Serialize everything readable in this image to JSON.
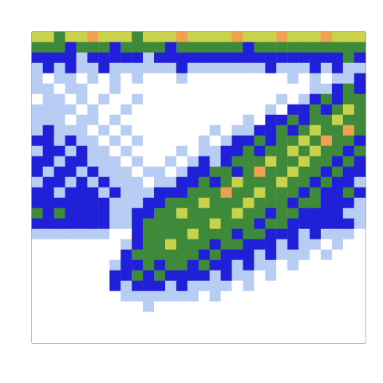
{
  "chart_data": {
    "type": "heatmap",
    "tick_labels": false,
    "zlim": [
      0,
      5
    ],
    "z": [
      [
        4,
        4,
        3,
        4,
        4,
        5,
        4,
        4,
        4,
        3,
        4,
        4,
        4,
        5,
        4,
        4,
        4,
        4,
        5,
        4,
        4,
        4,
        5,
        4,
        4,
        4,
        5,
        4,
        4,
        4
      ],
      [
        3,
        3,
        3,
        2,
        3,
        3,
        3,
        2,
        3,
        3,
        3,
        3,
        2,
        3,
        3,
        3,
        3,
        3,
        3,
        2,
        3,
        3,
        3,
        3,
        3,
        3,
        3,
        3,
        3,
        3
      ],
      [
        2,
        2,
        2,
        2,
        1,
        2,
        2,
        2,
        2,
        2,
        1,
        2,
        2,
        2,
        2,
        2,
        2,
        2,
        2,
        2,
        2,
        2,
        2,
        2,
        2,
        2,
        2,
        2,
        3,
        2
      ],
      [
        1,
        2,
        1,
        2,
        1,
        1,
        2,
        1,
        1,
        1,
        1,
        1,
        1,
        2,
        1,
        1,
        1,
        1,
        1,
        1,
        1,
        2,
        1,
        1,
        1,
        2,
        1,
        2,
        1,
        1
      ],
      [
        1,
        0,
        1,
        1,
        0,
        1,
        0,
        1,
        0,
        1,
        0,
        0,
        0,
        1,
        0,
        0,
        0,
        0,
        0,
        0,
        0,
        0,
        0,
        1,
        0,
        1,
        0,
        1,
        1,
        2
      ],
      [
        1,
        1,
        0,
        1,
        1,
        0,
        0,
        1,
        0,
        0,
        0,
        0,
        0,
        0,
        0,
        0,
        0,
        0,
        0,
        0,
        0,
        0,
        0,
        0,
        0,
        1,
        1,
        2,
        3,
        2
      ],
      [
        0,
        1,
        1,
        0,
        1,
        0,
        1,
        0,
        0,
        1,
        0,
        0,
        0,
        0,
        0,
        0,
        0,
        0,
        0,
        0,
        0,
        0,
        1,
        0,
        1,
        2,
        3,
        2,
        3,
        3
      ],
      [
        1,
        1,
        1,
        1,
        0,
        1,
        0,
        0,
        1,
        0,
        0,
        0,
        0,
        0,
        0,
        0,
        0,
        0,
        0,
        0,
        0,
        1,
        0,
        2,
        2,
        3,
        2,
        3,
        4,
        3
      ],
      [
        1,
        1,
        1,
        0,
        1,
        1,
        0,
        1,
        0,
        0,
        0,
        0,
        0,
        0,
        0,
        0,
        0,
        0,
        0,
        1,
        0,
        2,
        2,
        3,
        2,
        3,
        3,
        4,
        3,
        3
      ],
      [
        1,
        2,
        1,
        1,
        1,
        0,
        1,
        0,
        1,
        0,
        0,
        0,
        0,
        0,
        0,
        0,
        1,
        0,
        1,
        1,
        2,
        2,
        3,
        2,
        3,
        4,
        3,
        3,
        5,
        3
      ],
      [
        2,
        2,
        1,
        2,
        1,
        1,
        0,
        1,
        0,
        1,
        0,
        0,
        0,
        0,
        0,
        1,
        0,
        1,
        2,
        2,
        3,
        2,
        3,
        3,
        4,
        3,
        5,
        3,
        3,
        2
      ],
      [
        1,
        2,
        2,
        1,
        2,
        1,
        1,
        0,
        1,
        0,
        0,
        0,
        0,
        1,
        0,
        1,
        1,
        2,
        2,
        3,
        2,
        3,
        3,
        4,
        3,
        4,
        3,
        3,
        2,
        3
      ],
      [
        2,
        2,
        1,
        2,
        2,
        1,
        1,
        1,
        0,
        1,
        0,
        0,
        1,
        0,
        1,
        2,
        1,
        2,
        3,
        3,
        3,
        4,
        3,
        3,
        4,
        3,
        3,
        2,
        3,
        2
      ],
      [
        2,
        1,
        2,
        2,
        1,
        2,
        1,
        1,
        1,
        0,
        1,
        1,
        0,
        1,
        2,
        2,
        3,
        3,
        2,
        3,
        5,
        3,
        3,
        4,
        3,
        3,
        2,
        3,
        2,
        2
      ],
      [
        1,
        2,
        2,
        1,
        2,
        1,
        2,
        1,
        1,
        1,
        0,
        1,
        1,
        2,
        2,
        3,
        2,
        3,
        4,
        3,
        3,
        3,
        4,
        3,
        3,
        2,
        3,
        2,
        2,
        1
      ],
      [
        2,
        2,
        1,
        2,
        2,
        2,
        1,
        2,
        1,
        1,
        1,
        2,
        2,
        2,
        3,
        3,
        3,
        5,
        3,
        3,
        4,
        3,
        3,
        3,
        2,
        3,
        2,
        2,
        3,
        2
      ],
      [
        2,
        2,
        2,
        2,
        2,
        2,
        2,
        1,
        1,
        1,
        2,
        2,
        3,
        3,
        3,
        4,
        3,
        3,
        3,
        4,
        3,
        3,
        3,
        2,
        3,
        3,
        2,
        2,
        2,
        1
      ],
      [
        3,
        2,
        3,
        2,
        2,
        2,
        2,
        1,
        1,
        2,
        2,
        3,
        3,
        4,
        3,
        3,
        3,
        3,
        4,
        3,
        3,
        2,
        3,
        3,
        2,
        2,
        2,
        2,
        1,
        1
      ],
      [
        2,
        2,
        2,
        2,
        2,
        2,
        2,
        1,
        1,
        2,
        3,
        3,
        3,
        3,
        3,
        3,
        4,
        3,
        3,
        3,
        2,
        3,
        3,
        2,
        2,
        2,
        2,
        2,
        2,
        1
      ],
      [
        1,
        1,
        1,
        1,
        1,
        1,
        1,
        0,
        0,
        2,
        3,
        3,
        3,
        3,
        4,
        3,
        3,
        3,
        2,
        3,
        3,
        2,
        2,
        2,
        1,
        2,
        1,
        1,
        1,
        0
      ],
      [
        0,
        0,
        0,
        0,
        0,
        0,
        0,
        0,
        1,
        2,
        3,
        3,
        4,
        3,
        3,
        3,
        2,
        3,
        3,
        2,
        2,
        2,
        1,
        2,
        1,
        1,
        0,
        1,
        0,
        0
      ],
      [
        0,
        0,
        0,
        0,
        0,
        0,
        0,
        0,
        2,
        3,
        3,
        3,
        3,
        3,
        3,
        2,
        3,
        2,
        2,
        2,
        1,
        2,
        1,
        1,
        1,
        0,
        1,
        0,
        0,
        0
      ],
      [
        0,
        0,
        0,
        0,
        0,
        0,
        0,
        1,
        2,
        2,
        3,
        2,
        3,
        3,
        2,
        3,
        2,
        2,
        1,
        2,
        1,
        1,
        0,
        1,
        0,
        0,
        0,
        0,
        0,
        0
      ],
      [
        0,
        0,
        0,
        0,
        0,
        0,
        0,
        2,
        2,
        3,
        2,
        3,
        2,
        2,
        2,
        2,
        1,
        2,
        1,
        1,
        0,
        1,
        0,
        0,
        0,
        0,
        0,
        0,
        0,
        0
      ],
      [
        0,
        0,
        0,
        0,
        0,
        0,
        0,
        2,
        1,
        2,
        2,
        2,
        1,
        2,
        1,
        1,
        1,
        1,
        0,
        1,
        0,
        0,
        0,
        0,
        0,
        0,
        0,
        0,
        0,
        0
      ],
      [
        0,
        0,
        0,
        0,
        0,
        0,
        0,
        0,
        1,
        1,
        1,
        1,
        1,
        1,
        1,
        0,
        1,
        0,
        0,
        0,
        0,
        0,
        0,
        0,
        0,
        0,
        0,
        0,
        0,
        0
      ],
      [
        0,
        0,
        0,
        0,
        0,
        0,
        0,
        0,
        0,
        0,
        1,
        0,
        0,
        0,
        0,
        0,
        0,
        0,
        0,
        0,
        0,
        0,
        0,
        0,
        0,
        0,
        0,
        0,
        0,
        0
      ],
      [
        0,
        0,
        0,
        0,
        0,
        0,
        0,
        0,
        0,
        0,
        0,
        0,
        0,
        0,
        0,
        0,
        0,
        0,
        0,
        0,
        0,
        0,
        0,
        0,
        0,
        0,
        0,
        0,
        0,
        0
      ],
      [
        0,
        0,
        0,
        0,
        0,
        0,
        0,
        0,
        0,
        0,
        0,
        0,
        0,
        0,
        0,
        0,
        0,
        0,
        0,
        0,
        0,
        0,
        0,
        0,
        0,
        0,
        0,
        0,
        0,
        0
      ],
      [
        0,
        0,
        0,
        0,
        0,
        0,
        0,
        0,
        0,
        0,
        0,
        0,
        0,
        0,
        0,
        0,
        0,
        0,
        0,
        0,
        0,
        0,
        0,
        0,
        0,
        0,
        0,
        0,
        0,
        0
      ]
    ]
  }
}
